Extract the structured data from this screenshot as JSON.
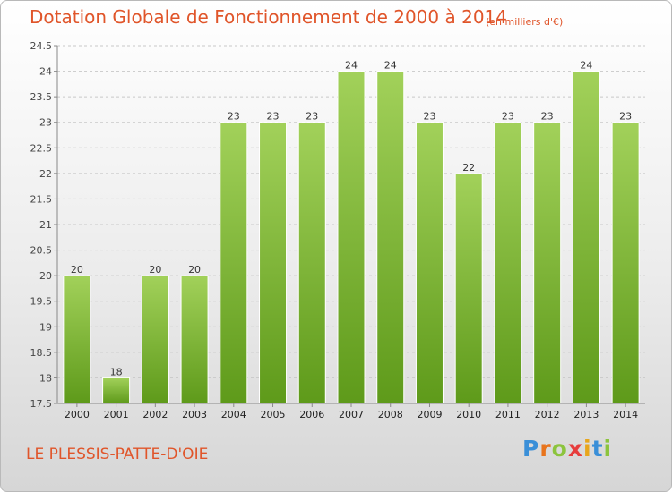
{
  "chart_data": {
    "type": "bar",
    "title": "Dotation Globale de Fonctionnement de 2000 à 2014",
    "subtitle": "(en milliers d'€)",
    "categories": [
      "2000",
      "2001",
      "2002",
      "2003",
      "2004",
      "2005",
      "2006",
      "2007",
      "2008",
      "2009",
      "2010",
      "2011",
      "2012",
      "2013",
      "2014"
    ],
    "values": [
      20,
      18,
      20,
      20,
      23,
      23,
      23,
      24,
      24,
      23,
      22,
      23,
      23,
      24,
      23
    ],
    "ylim": [
      17.5,
      24.5
    ],
    "yticks": [
      "17.5",
      "18",
      "18.5",
      "19",
      "19.5",
      "20",
      "20.5",
      "21",
      "21.5",
      "22",
      "22.5",
      "23",
      "23.5",
      "24",
      "24.5"
    ],
    "xlabel": "",
    "ylabel": "",
    "grid": "horizontal dashed",
    "bar_color": "#7ab82e"
  },
  "footer": {
    "commune": "LE PLESSIS-PATTE-D'OIE",
    "logo": [
      "P",
      "r",
      "o",
      "x",
      "i",
      "t",
      "i"
    ],
    "logo_colors": [
      "#3a8fd8",
      "#e8741c",
      "#8cc43d",
      "#e73d3d",
      "#e8a61c",
      "#3a8fd8",
      "#8cc43d"
    ]
  }
}
